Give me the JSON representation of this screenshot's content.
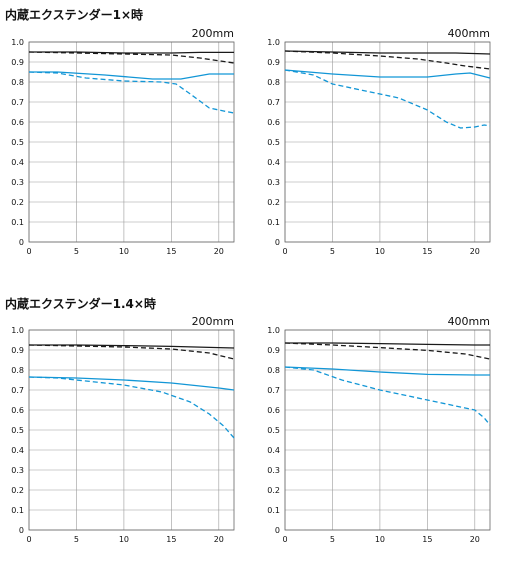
{
  "sections": [
    {
      "title": "内蔵エクステンダー1×時"
    },
    {
      "title": "内蔵エクステンダー1.4×時"
    }
  ],
  "colors": {
    "black_series": "#1a1a1a",
    "blue_series": "#1296d6",
    "grid": "#9a9a9a",
    "frame": "#666666"
  },
  "chart_data": [
    {
      "type": "line",
      "title": "200mm",
      "xlim": [
        0,
        21.6
      ],
      "ylim": [
        0,
        1.0
      ],
      "xticks": [
        0,
        5,
        10,
        15,
        20
      ],
      "yticks": [
        0,
        0.1,
        0.2,
        0.3,
        0.4,
        0.5,
        0.6,
        0.7,
        0.8,
        0.9,
        1.0
      ],
      "ytick_labels": [
        "0",
        "0.1",
        "0.2",
        "0.3",
        "0.4",
        "0.5",
        "0.6",
        "0.7",
        "0.8",
        "0.9",
        "1.0"
      ],
      "grid": true,
      "series": [
        {
          "color": "#1a1a1a",
          "dash": "solid",
          "x": [
            0,
            5,
            10,
            15,
            18,
            21.6
          ],
          "y": [
            0.95,
            0.95,
            0.945,
            0.945,
            0.948,
            0.948
          ]
        },
        {
          "color": "#1a1a1a",
          "dash": "dashed",
          "x": [
            0,
            5,
            10,
            15,
            18,
            21.6
          ],
          "y": [
            0.95,
            0.945,
            0.94,
            0.935,
            0.92,
            0.895
          ]
        },
        {
          "color": "#1296d6",
          "dash": "solid",
          "x": [
            0,
            3,
            8,
            13,
            16,
            19,
            21.6
          ],
          "y": [
            0.85,
            0.85,
            0.835,
            0.815,
            0.815,
            0.84,
            0.84
          ]
        },
        {
          "color": "#1296d6",
          "dash": "dashed",
          "x": [
            0,
            3,
            6,
            10,
            14,
            15.5,
            17,
            19,
            20.5,
            21.6
          ],
          "y": [
            0.85,
            0.845,
            0.82,
            0.805,
            0.8,
            0.79,
            0.74,
            0.67,
            0.655,
            0.645
          ]
        }
      ]
    },
    {
      "type": "line",
      "title": "400mm",
      "xlim": [
        0,
        21.6
      ],
      "ylim": [
        0,
        1.0
      ],
      "xticks": [
        0,
        5,
        10,
        15,
        20
      ],
      "yticks": [
        0,
        0.1,
        0.2,
        0.3,
        0.4,
        0.5,
        0.6,
        0.7,
        0.8,
        0.9,
        1.0
      ],
      "ytick_labels": [
        "0",
        "0.1",
        "0.2",
        "0.3",
        "0.4",
        "0.5",
        "0.6",
        "0.7",
        "0.8",
        "0.9",
        "1.0"
      ],
      "grid": true,
      "series": [
        {
          "color": "#1a1a1a",
          "dash": "solid",
          "x": [
            0,
            5,
            10,
            15,
            18,
            21.6
          ],
          "y": [
            0.955,
            0.95,
            0.945,
            0.945,
            0.945,
            0.94
          ]
        },
        {
          "color": "#1a1a1a",
          "dash": "dashed",
          "x": [
            0,
            5,
            10,
            14,
            17,
            19,
            21.6
          ],
          "y": [
            0.955,
            0.945,
            0.93,
            0.915,
            0.895,
            0.88,
            0.865
          ]
        },
        {
          "color": "#1296d6",
          "dash": "solid",
          "x": [
            0,
            5,
            10,
            15,
            18,
            19.5,
            21.6
          ],
          "y": [
            0.86,
            0.84,
            0.825,
            0.825,
            0.84,
            0.845,
            0.82
          ]
        },
        {
          "color": "#1296d6",
          "dash": "dashed",
          "x": [
            0,
            3,
            5,
            8,
            12,
            15,
            17,
            18.5,
            20,
            21,
            21.6
          ],
          "y": [
            0.86,
            0.835,
            0.79,
            0.76,
            0.72,
            0.66,
            0.6,
            0.57,
            0.575,
            0.585,
            0.58
          ]
        }
      ]
    },
    {
      "type": "line",
      "title": "200mm",
      "xlim": [
        0,
        21.6
      ],
      "ylim": [
        0,
        1.0
      ],
      "xticks": [
        0,
        5,
        10,
        15,
        20
      ],
      "yticks": [
        0,
        0.1,
        0.2,
        0.3,
        0.4,
        0.5,
        0.6,
        0.7,
        0.8,
        0.9,
        1.0
      ],
      "ytick_labels": [
        "0",
        "0.1",
        "0.2",
        "0.3",
        "0.4",
        "0.5",
        "0.6",
        "0.7",
        "0.8",
        "0.9",
        "1.0"
      ],
      "grid": true,
      "series": [
        {
          "color": "#1a1a1a",
          "dash": "solid",
          "x": [
            0,
            5,
            10,
            15,
            20,
            21.6
          ],
          "y": [
            0.925,
            0.925,
            0.922,
            0.918,
            0.912,
            0.91
          ]
        },
        {
          "color": "#1a1a1a",
          "dash": "dashed",
          "x": [
            0,
            5,
            10,
            15,
            19,
            21.6
          ],
          "y": [
            0.925,
            0.92,
            0.915,
            0.905,
            0.885,
            0.855
          ]
        },
        {
          "color": "#1296d6",
          "dash": "solid",
          "x": [
            0,
            5,
            10,
            15,
            20,
            21.6
          ],
          "y": [
            0.765,
            0.76,
            0.75,
            0.735,
            0.71,
            0.7
          ]
        },
        {
          "color": "#1296d6",
          "dash": "dashed",
          "x": [
            0,
            3,
            6,
            10,
            14,
            17,
            19,
            20.5,
            21.6
          ],
          "y": [
            0.765,
            0.76,
            0.745,
            0.725,
            0.69,
            0.64,
            0.58,
            0.52,
            0.46
          ]
        }
      ]
    },
    {
      "type": "line",
      "title": "400mm",
      "xlim": [
        0,
        21.6
      ],
      "ylim": [
        0,
        1.0
      ],
      "xticks": [
        0,
        5,
        10,
        15,
        20
      ],
      "yticks": [
        0,
        0.1,
        0.2,
        0.3,
        0.4,
        0.5,
        0.6,
        0.7,
        0.8,
        0.9,
        1.0
      ],
      "ytick_labels": [
        "0",
        "0.1",
        "0.2",
        "0.3",
        "0.4",
        "0.5",
        "0.6",
        "0.7",
        "0.8",
        "0.9",
        "1.0"
      ],
      "grid": true,
      "series": [
        {
          "color": "#1a1a1a",
          "dash": "solid",
          "x": [
            0,
            5,
            10,
            15,
            20,
            21.6
          ],
          "y": [
            0.935,
            0.935,
            0.932,
            0.928,
            0.925,
            0.925
          ]
        },
        {
          "color": "#1a1a1a",
          "dash": "dashed",
          "x": [
            0,
            5,
            10,
            15,
            19,
            21.6
          ],
          "y": [
            0.935,
            0.925,
            0.912,
            0.898,
            0.88,
            0.855
          ]
        },
        {
          "color": "#1296d6",
          "dash": "solid",
          "x": [
            0,
            5,
            10,
            15,
            20,
            21.6
          ],
          "y": [
            0.815,
            0.805,
            0.79,
            0.778,
            0.775,
            0.775
          ]
        },
        {
          "color": "#1296d6",
          "dash": "dashed",
          "x": [
            0,
            3,
            6,
            10,
            15,
            18,
            20,
            21,
            21.6
          ],
          "y": [
            0.815,
            0.8,
            0.75,
            0.7,
            0.65,
            0.62,
            0.6,
            0.56,
            0.525
          ]
        }
      ]
    }
  ]
}
